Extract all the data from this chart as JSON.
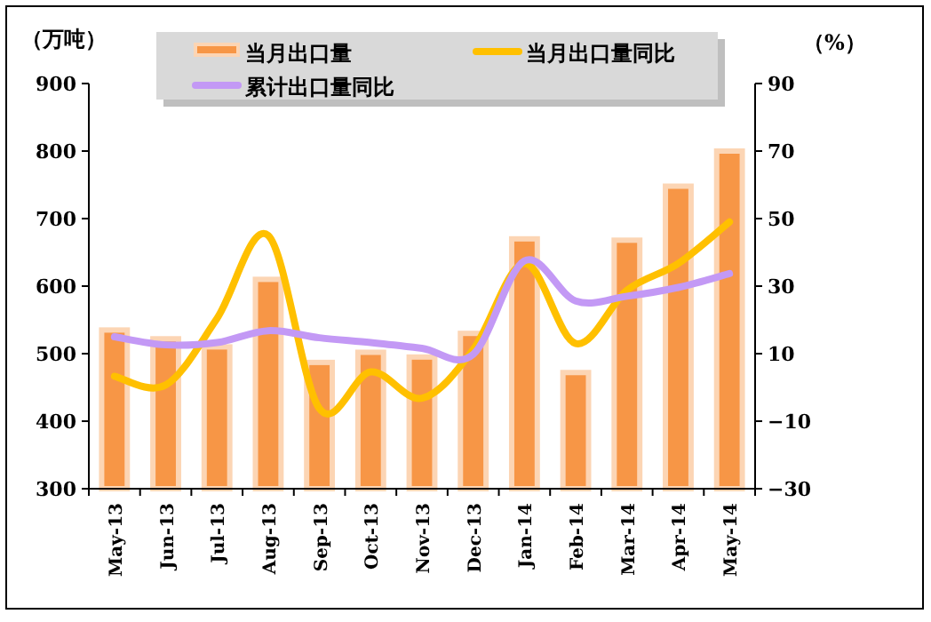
{
  "chart_data": {
    "type": "bar",
    "ylabel": "（万吨）",
    "y2label": "（%）",
    "categories": [
      "May-13",
      "Jun-13",
      "Jul-13",
      "Aug-13",
      "Sep-13",
      "Oct-13",
      "Nov-13",
      "Dec-13",
      "Jan-14",
      "Feb-14",
      "Mar-14",
      "Apr-14",
      "May-14"
    ],
    "series": [
      {
        "name": "当月出口量",
        "color": "#f79646",
        "values": [
          535,
          522,
          510,
          610,
          487,
          502,
          495,
          530,
          670,
          472,
          668,
          748,
          800
        ]
      },
      {
        "name": "当月出口量同比",
        "type": "line",
        "axis": "y2",
        "color": "#ffc000",
        "values": [
          3.3,
          0.7,
          20.4,
          45,
          -6.3,
          4.6,
          -3.2,
          11.2,
          36.7,
          13,
          28.8,
          36.7,
          49
        ]
      },
      {
        "name": "累计出口量同比",
        "type": "line",
        "axis": "y2",
        "color": "#c399f5",
        "values": [
          15,
          12.6,
          13.3,
          16.8,
          14.7,
          13.3,
          11.6,
          9.8,
          37.5,
          25.6,
          27,
          29.6,
          33.7
        ]
      }
    ],
    "ylim": [
      300,
      900
    ],
    "yticks": [
      300,
      400,
      500,
      600,
      700,
      800,
      900
    ],
    "y2lim": [
      -30,
      90
    ],
    "y2ticks": [
      -30,
      -10,
      10,
      30,
      50,
      70,
      90
    ],
    "grid": false,
    "legend": "top",
    "marker": "none",
    "line_style": "solid"
  }
}
